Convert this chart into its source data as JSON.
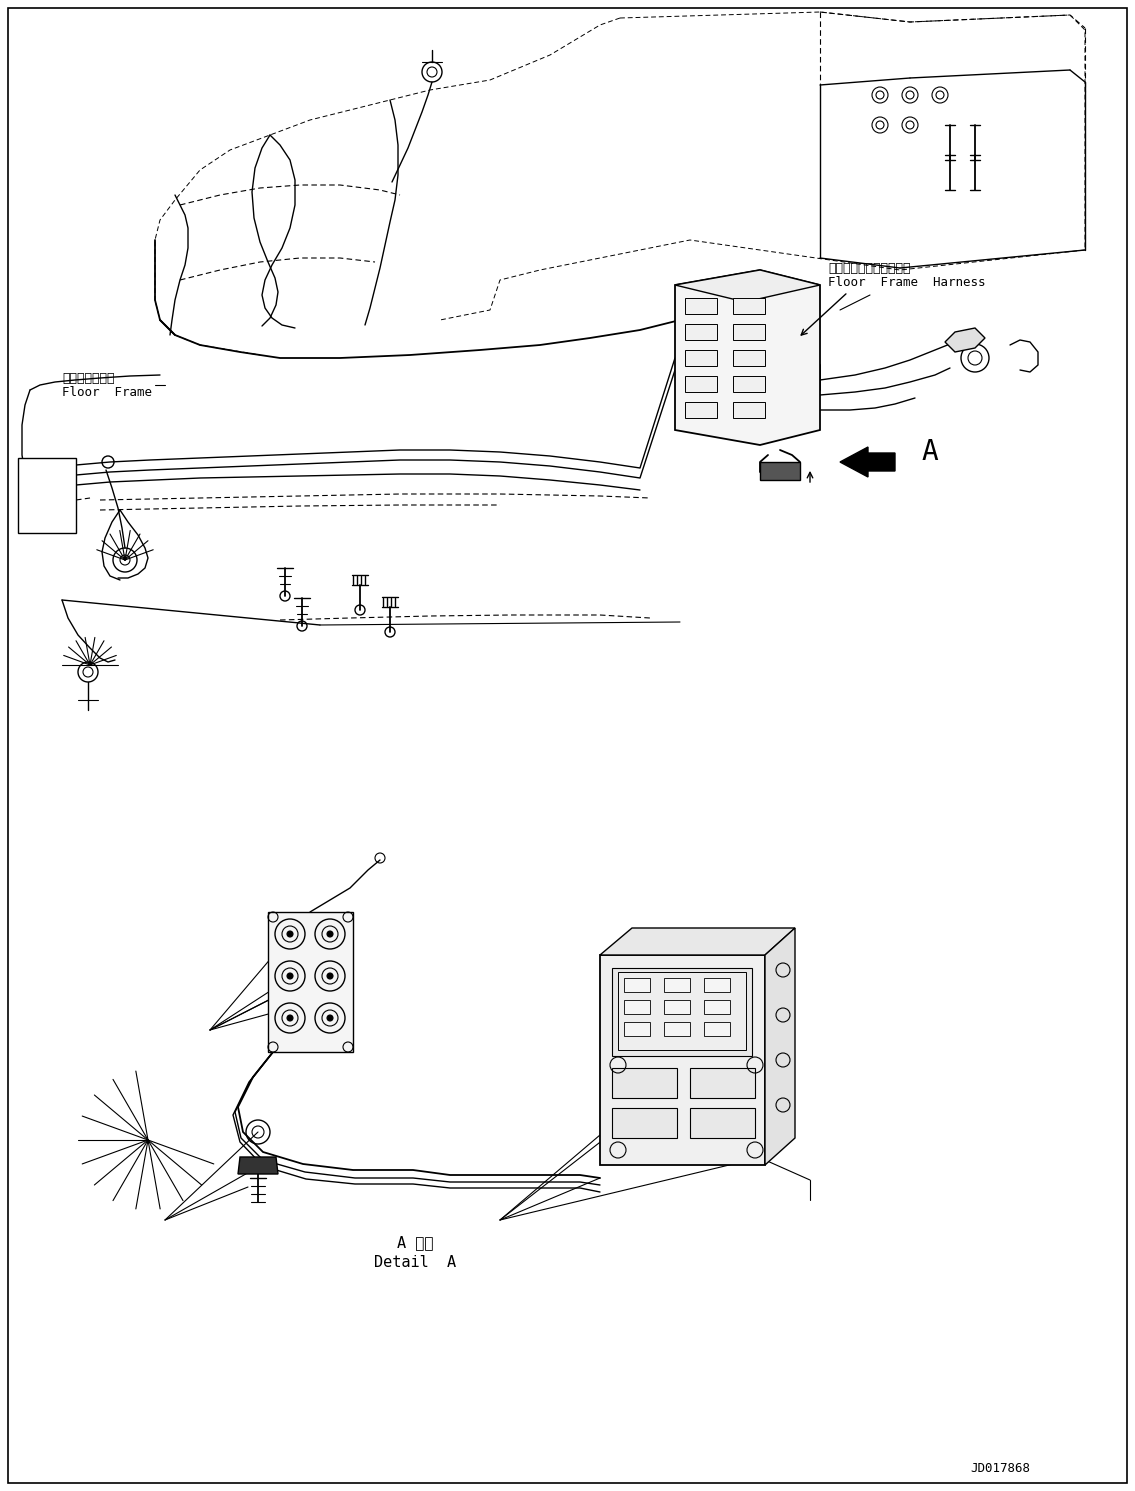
{
  "background_color": "#ffffff",
  "labels": {
    "floor_frame_jp": "フロアフレーム",
    "floor_frame_en": "Floor  Frame",
    "floor_frame_harness_jp": "フロアフレームハーネス",
    "floor_frame_harness_en": "Floor  Frame  Harness",
    "detail_a_jp": "A 詳細",
    "detail_a_en": "Detail  A",
    "label_a": "A",
    "doc_number": "JD017868"
  },
  "figsize": [
    11.35,
    14.91
  ],
  "dpi": 100
}
